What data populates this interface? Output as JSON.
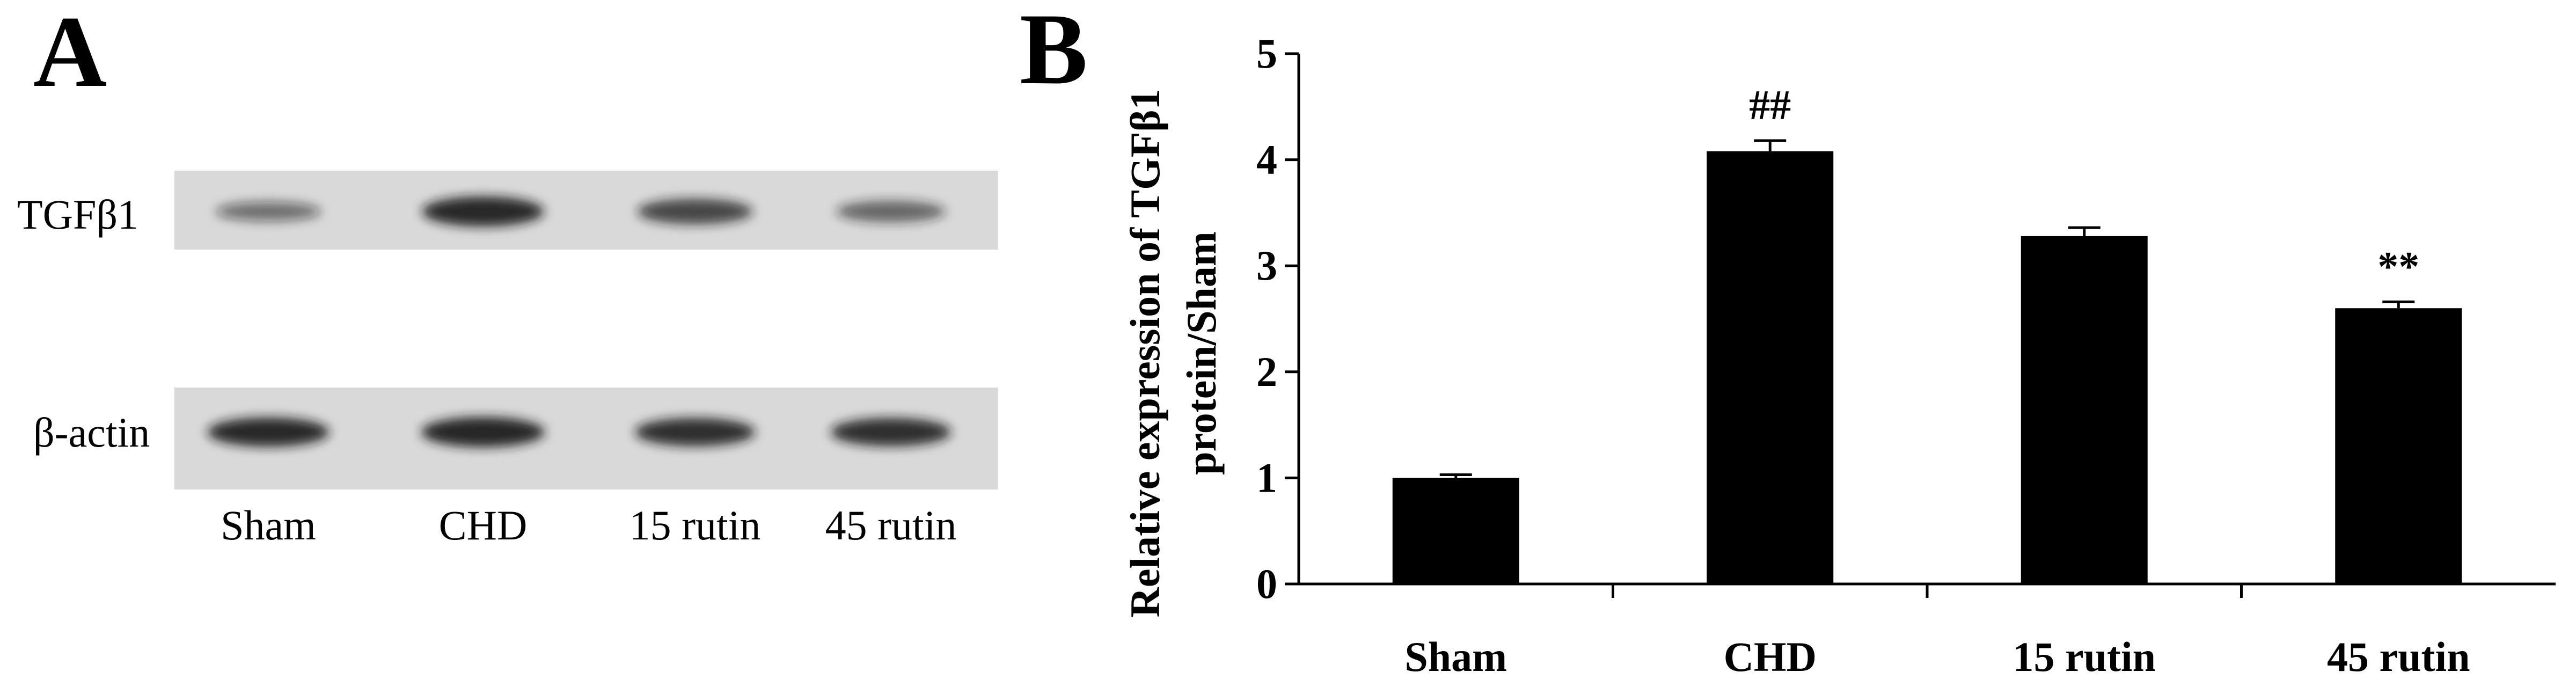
{
  "panels": {
    "a_letter": "A",
    "b_letter": "B"
  },
  "blot": {
    "rows": [
      {
        "label": "TGFβ1",
        "intensities": [
          0.45,
          0.95,
          0.75,
          0.55
        ]
      },
      {
        "label": "β-actin",
        "intensities": [
          0.95,
          1.0,
          0.9,
          0.9
        ]
      }
    ],
    "lanes": [
      "Sham",
      "CHD",
      "15 rutin",
      "45 rutin"
    ],
    "colors": {
      "membrane": "#d9d9d9",
      "band": "#1a1a1a"
    }
  },
  "chart_data": {
    "type": "bar",
    "categories": [
      "Sham",
      "CHD",
      "15 rutin",
      "45 rutin"
    ],
    "values": [
      1.0,
      4.08,
      3.28,
      2.6
    ],
    "errors": [
      0.03,
      0.1,
      0.08,
      0.06
    ],
    "annotations": [
      "",
      "##",
      "",
      "**"
    ],
    "ylabel_line1": "Relative expression of TGFβ1",
    "ylabel_line2": "protein/Sham",
    "ylim": [
      0,
      5
    ],
    "yticks": [
      0,
      1,
      2,
      3,
      4,
      5
    ],
    "grid": false,
    "bar_color": "#000000"
  }
}
